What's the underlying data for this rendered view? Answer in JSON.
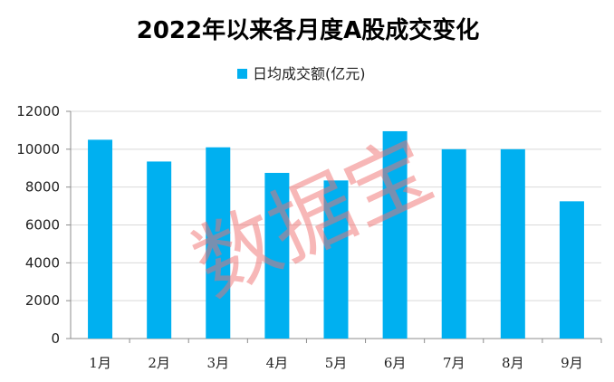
{
  "chart_data": {
    "type": "bar",
    "title": "2022年以来各月度A股成交变化",
    "legend": {
      "position": "top-center",
      "entries": [
        "日均成交额(亿元)"
      ]
    },
    "categories": [
      "1月",
      "2月",
      "3月",
      "4月",
      "5月",
      "6月",
      "7月",
      "8月",
      "9月"
    ],
    "series": [
      {
        "name": "日均成交额(亿元)",
        "values": [
          10500,
          9350,
          10100,
          8750,
          8350,
          10950,
          10000,
          10000,
          7250
        ],
        "color": "#00b0f0"
      }
    ],
    "ylim": [
      0,
      12000
    ],
    "yticks": [
      0,
      2000,
      4000,
      6000,
      8000,
      10000,
      12000
    ],
    "grid": {
      "horizontal": true,
      "vertical": false,
      "color": "#d9d9d9"
    }
  },
  "watermark": {
    "text": "数据宝",
    "color": "#f07070"
  }
}
